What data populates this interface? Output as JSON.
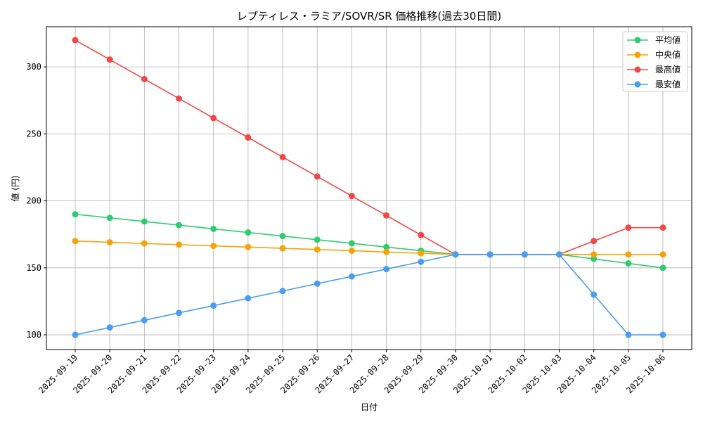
{
  "chart_data": {
    "type": "line",
    "title": "レプティレス・ラミア/SOVR/SR 価格推移(過去30日間)",
    "xlabel": "日付",
    "ylabel": "値 (円)",
    "categories": [
      "2025-09-19",
      "2025-09-20",
      "2025-09-21",
      "2025-09-22",
      "2025-09-23",
      "2025-09-24",
      "2025-09-25",
      "2025-09-26",
      "2025-09-27",
      "2025-09-28",
      "2025-09-29",
      "2025-09-30",
      "2025-10-01",
      "2025-10-02",
      "2025-10-03",
      "2025-10-04",
      "2025-10-05",
      "2025-10-06"
    ],
    "ylim": [
      89,
      330
    ],
    "yticks": [
      100,
      150,
      200,
      250,
      300
    ],
    "grid": true,
    "legend_position": "top-right",
    "series": [
      {
        "name": "平均値",
        "color": "#2ecc71",
        "values": [
          190,
          187.3,
          184.6,
          181.9,
          179.1,
          176.4,
          173.7,
          171,
          168.3,
          165.5,
          162.8,
          160,
          160,
          160,
          160,
          156.7,
          153.3,
          150
        ]
      },
      {
        "name": "中央値",
        "color": "#f5a30a",
        "values": [
          170,
          169.1,
          168.2,
          167.3,
          166.4,
          165.5,
          164.6,
          163.7,
          162.8,
          161.8,
          160.9,
          160,
          160,
          160,
          160,
          160,
          160,
          160
        ]
      },
      {
        "name": "最高値",
        "color": "#f04848",
        "values": [
          320,
          305.5,
          290.9,
          276.4,
          261.8,
          247.3,
          232.7,
          218.2,
          203.6,
          189.1,
          174.5,
          160,
          160,
          160,
          160,
          170,
          180,
          180
        ]
      },
      {
        "name": "最安値",
        "color": "#4a9df0",
        "values": [
          100,
          105.5,
          110.9,
          116.4,
          121.8,
          127.3,
          132.7,
          138.2,
          143.6,
          149.1,
          154.5,
          160,
          160,
          160,
          160,
          130,
          100,
          100
        ]
      }
    ]
  }
}
